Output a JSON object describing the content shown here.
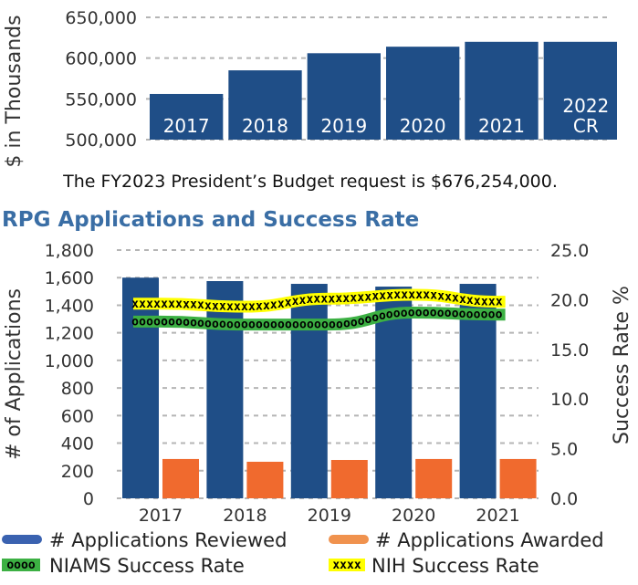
{
  "chart_data": [
    {
      "type": "bar",
      "title": "",
      "ylabel": "$ in Thousands",
      "ylim": [
        500000,
        650000
      ],
      "yticks": [
        "500,000",
        "550,000",
        "600,000",
        "650,000"
      ],
      "grid": true,
      "categories": [
        "2017",
        "2018",
        "2019",
        "2020",
        "2021",
        "2022 CR"
      ],
      "category_lines": [
        [
          "2017"
        ],
        [
          "2018"
        ],
        [
          "2019"
        ],
        [
          "2020"
        ],
        [
          "2021"
        ],
        [
          "2022",
          "CR"
        ]
      ],
      "values": [
        556000,
        585000,
        606000,
        614000,
        620000,
        620000
      ],
      "colors": {
        "bar": "#1f4e87",
        "grid": "#b5b5b5"
      }
    },
    {
      "type": "bar",
      "title": "RPG Applications and Success Rate",
      "ylabel": "# of Applications",
      "y2label": "Success Rate %",
      "ylim": [
        0,
        1800
      ],
      "y2lim": [
        0,
        25
      ],
      "yticks": [
        "0",
        "200",
        "400",
        "600",
        "800",
        "1,000",
        "1,200",
        "1,400",
        "1,600",
        "1,800"
      ],
      "y2ticks": [
        "0.0",
        "5.0",
        "10.0",
        "15.0",
        "20.0",
        "25.0"
      ],
      "grid": true,
      "legend": "bottom",
      "categories": [
        "2017",
        "2018",
        "2019",
        "2020",
        "2021"
      ],
      "series": [
        {
          "name": "# Applications Reviewed",
          "kind": "bar",
          "axis": "left",
          "color": "#1f4e87",
          "values": [
            1600,
            1575,
            1555,
            1535,
            1555
          ]
        },
        {
          "name": "# Applications Awarded",
          "kind": "bar",
          "axis": "left",
          "color": "#f06a2e",
          "values": [
            285,
            265,
            278,
            285,
            285
          ]
        },
        {
          "name": "NIAMS Success Rate",
          "kind": "line",
          "axis": "right",
          "color": "#3cb043",
          "marker": "o",
          "values": [
            17.8,
            17.5,
            17.5,
            18.7,
            18.5
          ]
        },
        {
          "name": "NIH Success Rate",
          "kind": "line",
          "axis": "right",
          "color": "#ffff00",
          "marker": "x",
          "values": [
            19.6,
            19.3,
            20.1,
            20.5,
            19.8
          ]
        }
      ]
    }
  ],
  "budget_note": "The FY2023 President’s Budget request is $676,254,000.",
  "legend_marker_text": {
    "niams": "oooo",
    "nih": "xxxx"
  }
}
